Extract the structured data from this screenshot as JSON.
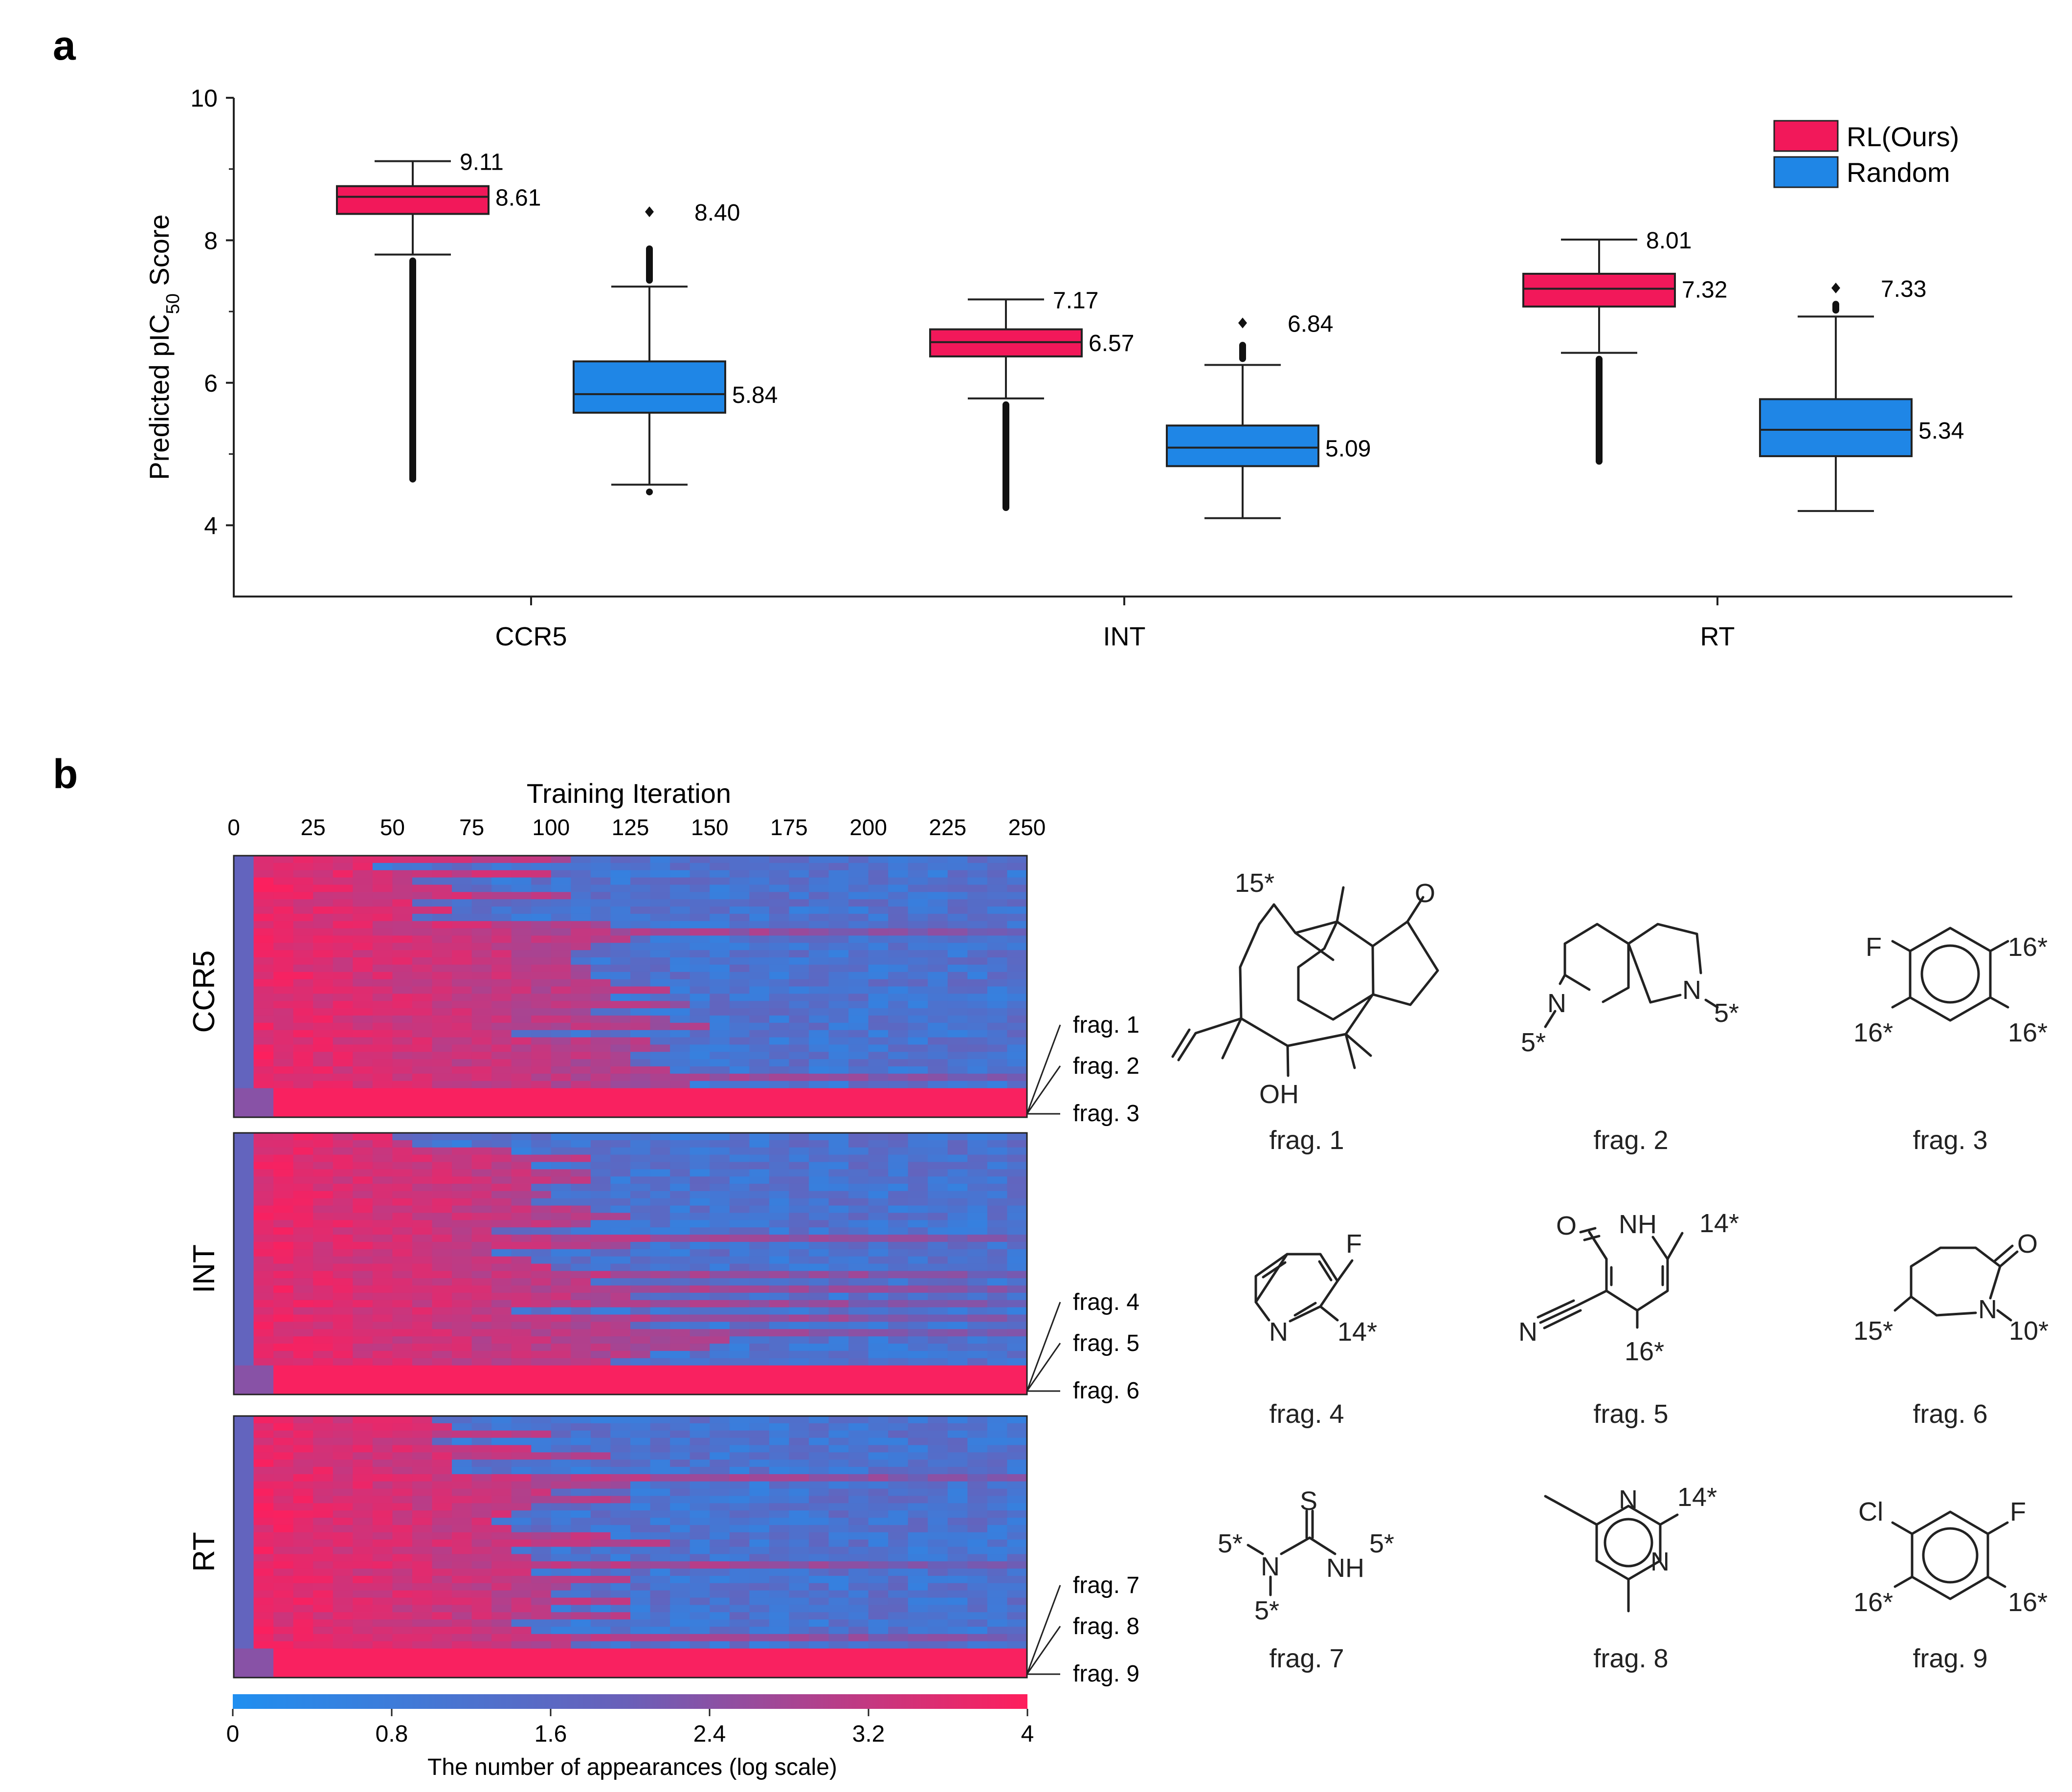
{
  "panel_a": {
    "letter": "a",
    "ylabel": {
      "main": "Predicted pIC",
      "sub": "50",
      "rest": " Score"
    },
    "legend": [
      {
        "label": "RL(Ours)",
        "color": "#f2185a"
      },
      {
        "label": "Random",
        "color": "#1f86e6"
      }
    ]
  },
  "panel_b": {
    "letter": "b",
    "heatmap_xlabel": "Training Iteration",
    "heatmap_xticks": [
      "0",
      "25",
      "50",
      "75",
      "100",
      "125",
      "150",
      "175",
      "200",
      "225",
      "250"
    ],
    "row_labels": [
      "CCR5",
      "INT",
      "RT"
    ],
    "frag_labels": [
      [
        "frag. 1",
        "frag. 2",
        "frag. 3"
      ],
      [
        "frag. 4",
        "frag. 5",
        "frag. 6"
      ],
      [
        "frag. 7",
        "frag. 8",
        "frag. 9"
      ]
    ],
    "colorbar_ticks": [
      "0",
      "0.8",
      "1.6",
      "2.4",
      "3.2",
      "4"
    ],
    "colorbar_label": "The number of appearances (log scale)",
    "colors": {
      "low": "#1f8ff0",
      "mid": "#6a5fb8",
      "high": "#ff1e5c"
    },
    "fragments": [
      {
        "caption": "frag. 1",
        "texts": [
          "15*",
          "O",
          "OH"
        ]
      },
      {
        "caption": "frag. 2",
        "texts": [
          "N",
          "N",
          "5*",
          "5*"
        ]
      },
      {
        "caption": "frag. 3",
        "texts": [
          "F",
          "16*",
          "16*",
          "16*"
        ]
      },
      {
        "caption": "frag. 4",
        "texts": [
          "F",
          "N",
          "14*"
        ]
      },
      {
        "caption": "frag. 5",
        "texts": [
          "O",
          "NH",
          "14*",
          "N",
          "16*"
        ]
      },
      {
        "caption": "frag. 6",
        "texts": [
          "O",
          "N",
          "15*",
          "10*"
        ]
      },
      {
        "caption": "frag. 7",
        "texts": [
          "S",
          "5*",
          "N",
          "NH",
          "5*",
          "5*"
        ]
      },
      {
        "caption": "frag. 8",
        "texts": [
          "N",
          "14*",
          "N"
        ]
      },
      {
        "caption": "frag. 9",
        "texts": [
          "Cl",
          "F",
          "16*",
          "16*"
        ]
      }
    ]
  },
  "chart_data": {
    "type": "box",
    "title": "",
    "xlabel": "",
    "ylabel": "Predicted pIC50 Score",
    "ylim": [
      3,
      10
    ],
    "yticks": [
      "4",
      "6",
      "8",
      "10"
    ],
    "categories": [
      "CCR5",
      "INT",
      "RT"
    ],
    "legend_position": "top-right",
    "series": [
      {
        "name": "RL(Ours)",
        "color": "#f2185a",
        "median": [
          8.61,
          6.57,
          7.32
        ],
        "q1": [
          8.37,
          6.37,
          7.07
        ],
        "q3": [
          8.76,
          6.75,
          7.53
        ],
        "whisker_low": [
          7.8,
          5.78,
          6.42
        ],
        "whisker_high": [
          9.11,
          7.17,
          8.01
        ],
        "outlier_min": [
          4.6,
          4.2,
          4.85
        ],
        "labels": {
          "whisker_high": [
            "9.11",
            "7.17",
            "8.01"
          ],
          "median": [
            "8.61",
            "6.57",
            "7.32"
          ]
        }
      },
      {
        "name": "Random",
        "color": "#1f86e6",
        "median": [
          5.84,
          5.09,
          5.34
        ],
        "q1": [
          5.58,
          4.83,
          4.97
        ],
        "q3": [
          6.3,
          5.4,
          5.77
        ],
        "whisker_low": [
          4.57,
          4.1,
          4.2
        ],
        "whisker_high": [
          7.35,
          6.25,
          6.93
        ],
        "outlier_max": [
          8.4,
          6.84,
          7.33
        ],
        "outlier_min": [
          4.42,
          null,
          null
        ],
        "labels": {
          "outlier_max": [
            "8.40",
            "6.84",
            "7.33"
          ],
          "median": [
            "5.84",
            "5.09",
            "5.34"
          ]
        }
      }
    ]
  }
}
